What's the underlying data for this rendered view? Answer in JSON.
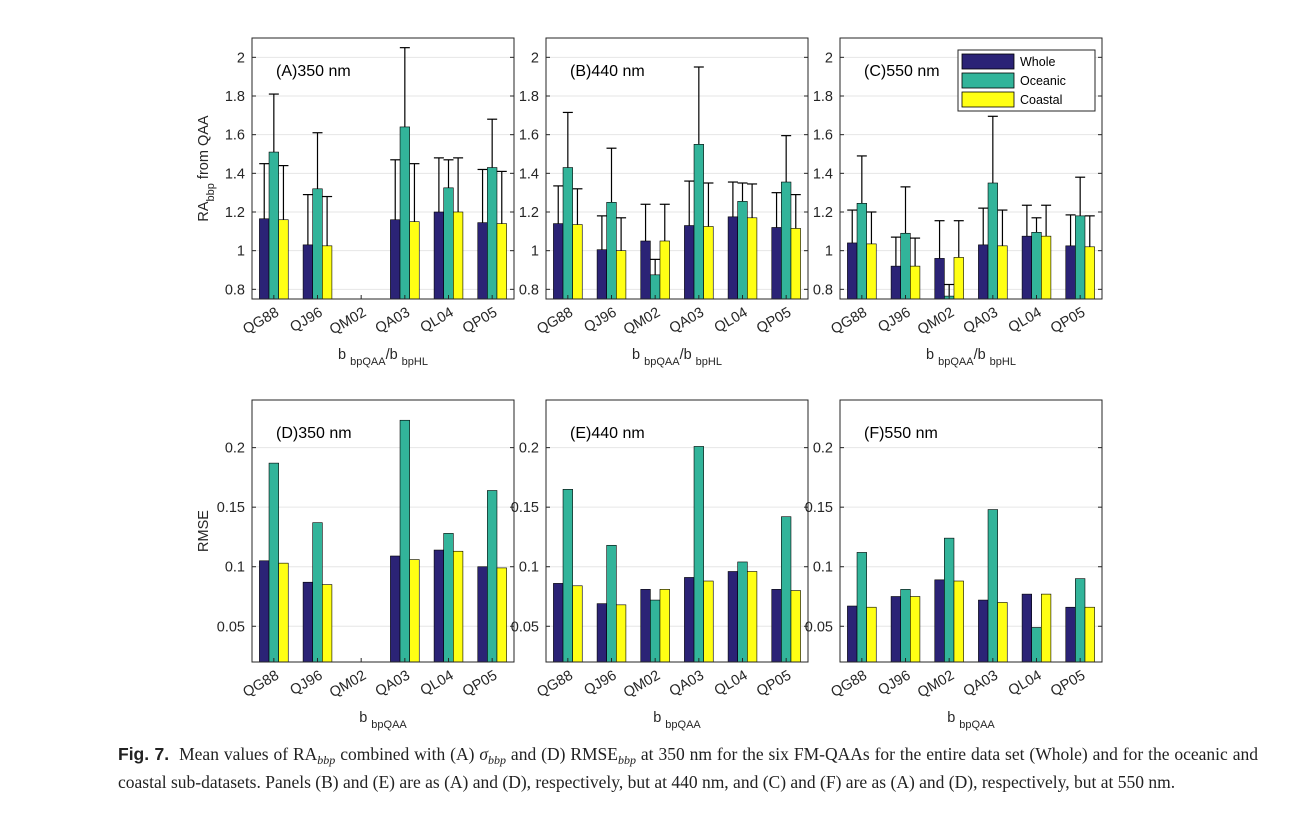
{
  "legend": {
    "entries": [
      "Whole",
      "Oceanic",
      "Coastal"
    ],
    "colors": [
      "#2b2376",
      "#32b49a",
      "#ffff14"
    ]
  },
  "categories": [
    "QG88",
    "QJ96",
    "QM02",
    "QA03",
    "QL04",
    "QP05"
  ],
  "chart_data": [
    {
      "type": "bar",
      "panel": "A",
      "title": "(A)350 nm",
      "ylabel": "RA",
      "ylabel_sub": "bbp",
      "ylabel_rest": " from QAA",
      "xlabel": "b",
      "xlabel_sub1": "bpQAA",
      "xlabel_mid": "/b",
      "xlabel_sub2": "bpHL",
      "ylim": [
        0.75,
        2.1
      ],
      "yticks": [
        0.8,
        1,
        1.2,
        1.4,
        1.6,
        1.8,
        2
      ],
      "ytick_labels": [
        "0.8",
        "1",
        "1.2",
        "1.4",
        "1.6",
        "1.8",
        "2"
      ],
      "categories": [
        "QG88",
        "QJ96",
        "QM02",
        "QA03",
        "QL04",
        "QP05"
      ],
      "series": [
        {
          "name": "Whole",
          "values": [
            1.165,
            1.03,
            null,
            1.16,
            1.2,
            1.145
          ],
          "errors": [
            0.285,
            0.26,
            null,
            0.31,
            0.28,
            0.275
          ]
        },
        {
          "name": "Oceanic",
          "values": [
            1.51,
            1.32,
            null,
            1.64,
            1.325,
            1.43
          ],
          "errors": [
            0.3,
            0.29,
            null,
            0.41,
            0.145,
            0.25
          ]
        },
        {
          "name": "Coastal",
          "values": [
            1.16,
            1.025,
            null,
            1.15,
            1.2,
            1.14
          ],
          "errors": [
            0.28,
            0.255,
            null,
            0.3,
            0.28,
            0.27
          ]
        }
      ]
    },
    {
      "type": "bar",
      "panel": "B",
      "title": "(B)440 nm",
      "xlabel": "b",
      "xlabel_sub1": "bpQAA",
      "xlabel_mid": "/b",
      "xlabel_sub2": "bpHL",
      "ylim": [
        0.75,
        2.1
      ],
      "yticks": [
        0.8,
        1,
        1.2,
        1.4,
        1.6,
        1.8,
        2
      ],
      "ytick_labels": [
        "0.8",
        "1",
        "1.2",
        "1.4",
        "1.6",
        "1.8",
        "2"
      ],
      "categories": [
        "QG88",
        "QJ96",
        "QM02",
        "QA03",
        "QL04",
        "QP05"
      ],
      "series": [
        {
          "name": "Whole",
          "values": [
            1.14,
            1.005,
            1.05,
            1.13,
            1.175,
            1.12
          ],
          "errors": [
            0.195,
            0.175,
            0.19,
            0.23,
            0.18,
            0.18
          ]
        },
        {
          "name": "Oceanic",
          "values": [
            1.43,
            1.25,
            0.875,
            1.55,
            1.255,
            1.355
          ],
          "errors": [
            0.285,
            0.28,
            0.08,
            0.4,
            0.095,
            0.24
          ]
        },
        {
          "name": "Coastal",
          "values": [
            1.135,
            1.0,
            1.05,
            1.125,
            1.17,
            1.115
          ],
          "errors": [
            0.185,
            0.17,
            0.19,
            0.225,
            0.175,
            0.175
          ]
        }
      ]
    },
    {
      "type": "bar",
      "panel": "C",
      "title": "(C)550 nm",
      "xlabel": "b",
      "xlabel_sub1": "bpQAA",
      "xlabel_mid": "/b",
      "xlabel_sub2": "bpHL",
      "ylim": [
        0.75,
        2.1
      ],
      "yticks": [
        0.8,
        1,
        1.2,
        1.4,
        1.6,
        1.8,
        2
      ],
      "ytick_labels": [
        "0.8",
        "1",
        "1.2",
        "1.4",
        "1.6",
        "1.8",
        "2"
      ],
      "legend_position": "top-right",
      "categories": [
        "QG88",
        "QJ96",
        "QM02",
        "QA03",
        "QL04",
        "QP05"
      ],
      "series": [
        {
          "name": "Whole",
          "values": [
            1.04,
            0.92,
            0.96,
            1.03,
            1.075,
            1.025
          ],
          "errors": [
            0.17,
            0.15,
            0.195,
            0.19,
            0.16,
            0.16
          ]
        },
        {
          "name": "Oceanic",
          "values": [
            1.245,
            1.09,
            0.765,
            1.35,
            1.095,
            1.18
          ],
          "errors": [
            0.245,
            0.24,
            0.06,
            0.345,
            0.075,
            0.2
          ]
        },
        {
          "name": "Coastal",
          "values": [
            1.035,
            0.92,
            0.965,
            1.025,
            1.075,
            1.02
          ],
          "errors": [
            0.165,
            0.145,
            0.19,
            0.185,
            0.16,
            0.16
          ]
        }
      ]
    },
    {
      "type": "bar",
      "panel": "D",
      "title": "(D)350 nm",
      "ylabel": "RMSE",
      "xlabel": "b",
      "xlabel_sub1": "bpQAA",
      "ylim": [
        0.02,
        0.24
      ],
      "yticks": [
        0.05,
        0.1,
        0.15,
        0.2
      ],
      "ytick_labels": [
        "0.05",
        "0.1",
        "0.15",
        "0.2"
      ],
      "categories": [
        "QG88",
        "QJ96",
        "QM02",
        "QA03",
        "QL04",
        "QP05"
      ],
      "series": [
        {
          "name": "Whole",
          "values": [
            0.105,
            0.087,
            null,
            0.109,
            0.114,
            0.1
          ]
        },
        {
          "name": "Oceanic",
          "values": [
            0.187,
            0.137,
            null,
            0.223,
            0.128,
            0.164
          ]
        },
        {
          "name": "Coastal",
          "values": [
            0.103,
            0.085,
            null,
            0.106,
            0.113,
            0.099
          ]
        }
      ]
    },
    {
      "type": "bar",
      "panel": "E",
      "title": "(E)440 nm",
      "xlabel": "b",
      "xlabel_sub1": "bpQAA",
      "ylim": [
        0.02,
        0.24
      ],
      "yticks": [
        0.05,
        0.1,
        0.15,
        0.2
      ],
      "ytick_labels": [
        "0.05",
        "0.1",
        "0.15",
        "0.2"
      ],
      "categories": [
        "QG88",
        "QJ96",
        "QM02",
        "QA03",
        "QL04",
        "QP05"
      ],
      "series": [
        {
          "name": "Whole",
          "values": [
            0.086,
            0.069,
            0.081,
            0.091,
            0.096,
            0.081
          ]
        },
        {
          "name": "Oceanic",
          "values": [
            0.165,
            0.118,
            0.072,
            0.201,
            0.104,
            0.142
          ]
        },
        {
          "name": "Coastal",
          "values": [
            0.084,
            0.068,
            0.081,
            0.088,
            0.096,
            0.08
          ]
        }
      ]
    },
    {
      "type": "bar",
      "panel": "F",
      "title": "(F)550 nm",
      "xlabel": "b",
      "xlabel_sub1": "bpQAA",
      "ylim": [
        0.02,
        0.24
      ],
      "yticks": [
        0.05,
        0.1,
        0.15,
        0.2
      ],
      "ytick_labels": [
        "0.05",
        "0.1",
        "0.15",
        "0.2"
      ],
      "categories": [
        "QG88",
        "QJ96",
        "QM02",
        "QA03",
        "QL04",
        "QP05"
      ],
      "series": [
        {
          "name": "Whole",
          "values": [
            0.067,
            0.075,
            0.089,
            0.072,
            0.077,
            0.066
          ]
        },
        {
          "name": "Oceanic",
          "values": [
            0.112,
            0.081,
            0.124,
            0.148,
            0.049,
            0.09
          ]
        },
        {
          "name": "Coastal",
          "values": [
            0.066,
            0.075,
            0.088,
            0.07,
            0.077,
            0.066
          ]
        }
      ]
    }
  ],
  "caption": {
    "label": "Fig. 7.",
    "t1": "Mean values of RA",
    "s1": "bbp",
    "t2": " combined with (A) ",
    "sigma": "σ",
    "s2": "bbp",
    "t3": " and (D) RMSE",
    "s3": "bbp",
    "t4": " at 350 nm for the six FM-QAAs for the entire data set (Whole) and for the oceanic and coastal sub-datasets. Panels (B) and (E) are as (A) and (D), respectively, but at 440 nm, and (C) and (F) are as (A) and (D), respectively, but at 550 nm."
  }
}
